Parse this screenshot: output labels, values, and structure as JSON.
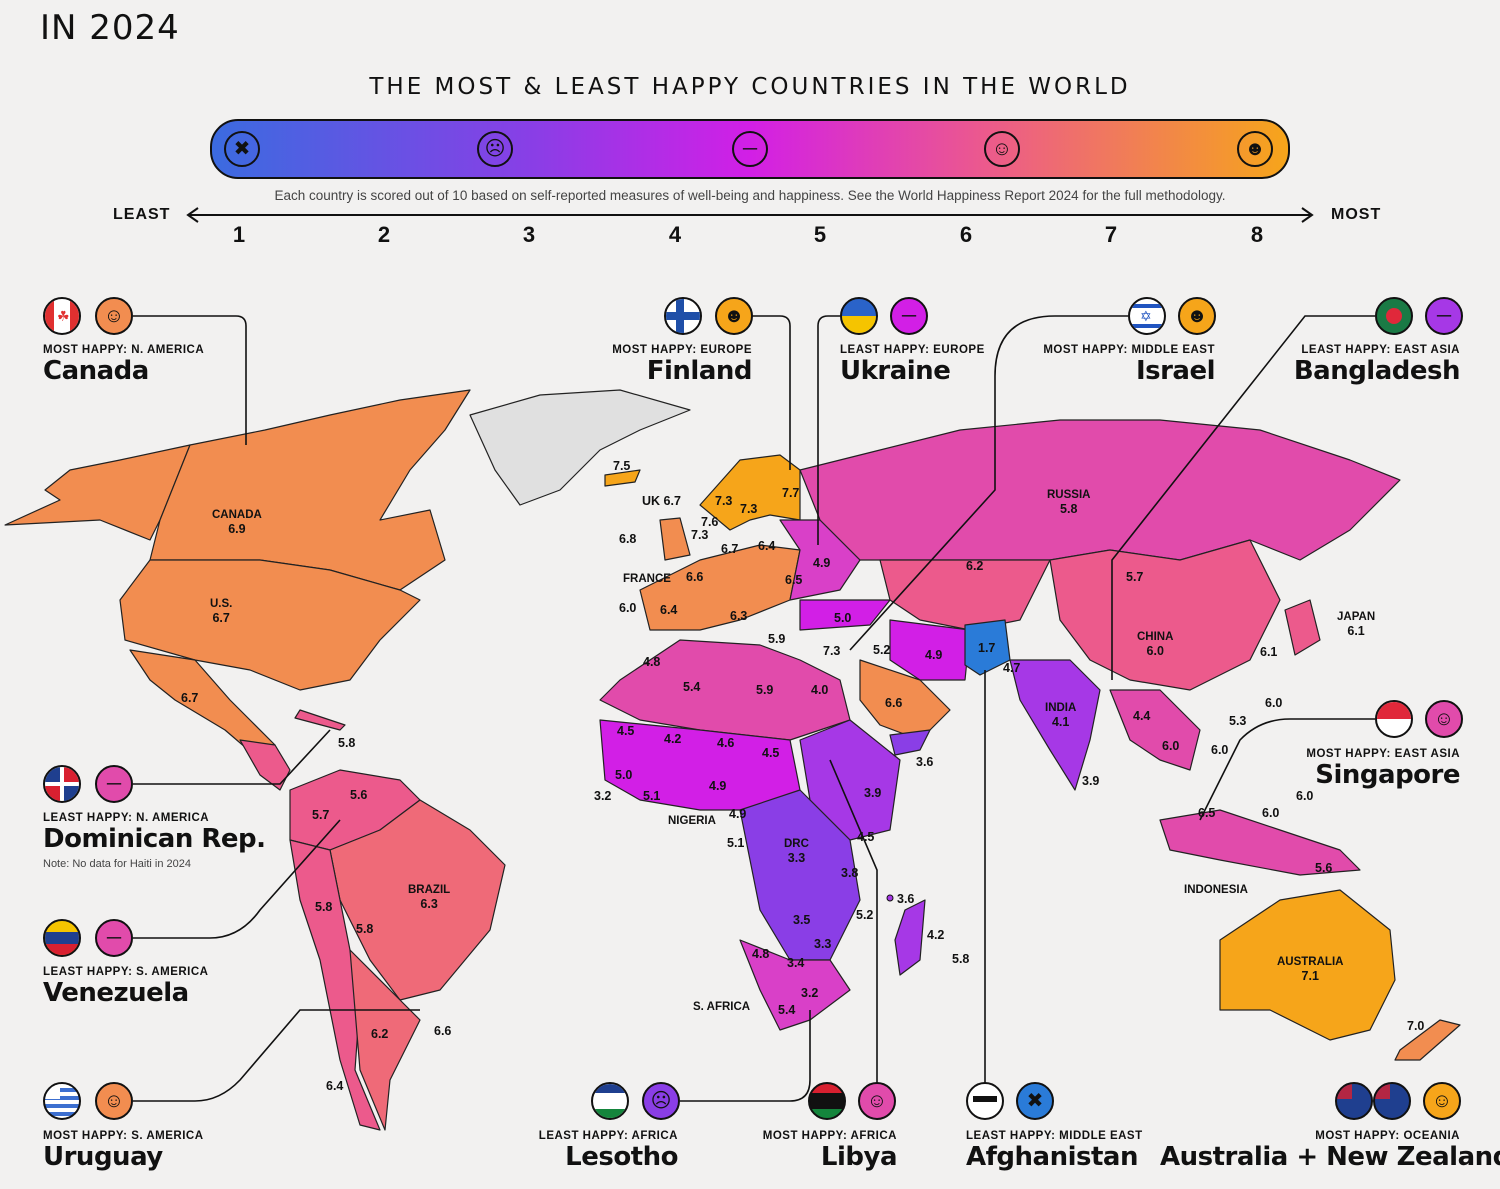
{
  "header": {
    "year_title": "IN 2024",
    "title": "THE MOST & LEAST HAPPY COUNTRIES IN THE WORLD",
    "note": "Each country is scored out of 10 based on self-reported measures of well-being and happiness. See the World Happiness Report 2024 for the full methodology.",
    "least_label": "LEAST",
    "most_label": "MOST",
    "scale_ticks": [
      "1",
      "2",
      "3",
      "4",
      "5",
      "6",
      "7",
      "8"
    ],
    "scale_faces": [
      "angry-face-icon",
      "frown-face-icon",
      "neutral-face-icon",
      "smile-face-icon",
      "grin-face-icon"
    ],
    "scale_colors": [
      "#3b6be0",
      "#8a3ee6",
      "#d21fe6",
      "#ec5a8c",
      "#f6a51a"
    ]
  },
  "map_labels": {
    "canada": {
      "name": "CANADA",
      "value": "6.9"
    },
    "us": {
      "name": "U.S.",
      "value": "6.7"
    },
    "russia": {
      "name": "RUSSIA",
      "value": "5.8"
    },
    "china": {
      "name": "CHINA",
      "value": "6.0"
    },
    "japan": {
      "name": "JAPAN",
      "value": "6.1"
    },
    "india": {
      "name": "INDIA",
      "value": "4.1"
    },
    "brazil": {
      "name": "BRAZIL",
      "value": "6.3"
    },
    "australia": {
      "name": "AUSTRALIA",
      "value": "7.1"
    },
    "drc": {
      "name": "DRC",
      "value": "3.3"
    },
    "uk": {
      "name": "UK",
      "value": "6.7"
    },
    "france": {
      "name": "FRANCE"
    },
    "nigeria": {
      "name": "NIGERIA"
    },
    "s_africa": {
      "name": "S. AFRICA"
    },
    "indonesia": {
      "name": "INDONESIA"
    }
  },
  "map_values": [
    "7.5",
    "7.3",
    "7.3",
    "7.7",
    "7.6",
    "7.3",
    "6.8",
    "6.7",
    "6.4",
    "4.9",
    "6.6",
    "6.5",
    "6.0",
    "6.4",
    "6.3",
    "5.9",
    "5.0",
    "7.3",
    "5.2",
    "4.9",
    "1.7",
    "4.7",
    "6.2",
    "5.7",
    "6.6",
    "4.0",
    "5.9",
    "5.4",
    "4.8",
    "4.5",
    "4.2",
    "4.6",
    "4.5",
    "5.0",
    "3.2",
    "5.1",
    "4.9",
    "4.9",
    "3.9",
    "3.6",
    "5.1",
    "4.5",
    "3.8",
    "3.6",
    "5.2",
    "3.5",
    "4.2",
    "3.3",
    "4.8",
    "3.4",
    "5.8",
    "3.2",
    "5.4",
    "6.7",
    "5.8",
    "5.6",
    "5.7",
    "5.8",
    "5.8",
    "6.2",
    "6.6",
    "6.4",
    "3.9",
    "4.4",
    "6.0",
    "6.0",
    "5.3",
    "6.0",
    "6.1",
    "6.5",
    "6.0",
    "6.0",
    "5.6",
    "7.0"
  ],
  "callouts": {
    "canada": {
      "kicker": "MOST HAPPY: N. AMERICA",
      "country": "Canada",
      "face": "smile-face-icon"
    },
    "finland": {
      "kicker": "MOST HAPPY: EUROPE",
      "country": "Finland",
      "face": "grin-face-icon"
    },
    "ukraine": {
      "kicker": "LEAST HAPPY: EUROPE",
      "country": "Ukraine",
      "face": "neutral-face-icon"
    },
    "israel": {
      "kicker": "MOST HAPPY: MIDDLE EAST",
      "country": "Israel",
      "face": "grin-face-icon"
    },
    "bangladesh": {
      "kicker": "LEAST HAPPY: EAST ASIA",
      "country": "Bangladesh",
      "face": "neutral-face-icon"
    },
    "singapore": {
      "kicker": "MOST HAPPY: EAST ASIA",
      "country": "Singapore",
      "face": "smile-face-icon"
    },
    "dominican": {
      "kicker": "LEAST HAPPY: N. AMERICA",
      "country": "Dominican Rep.",
      "note": "Note: No data for Haiti in 2024",
      "face": "neutral-face-icon"
    },
    "venezuela": {
      "kicker": "LEAST HAPPY: S. AMERICA",
      "country": "Venezuela",
      "face": "neutral-face-icon"
    },
    "uruguay": {
      "kicker": "MOST HAPPY: S. AMERICA",
      "country": "Uruguay",
      "face": "smile-face-icon"
    },
    "lesotho": {
      "kicker": "LEAST HAPPY: AFRICA",
      "country": "Lesotho",
      "face": "frown-face-icon"
    },
    "libya": {
      "kicker": "MOST HAPPY: AFRICA",
      "country": "Libya",
      "face": "smile-face-icon"
    },
    "afghanistan": {
      "kicker": "LEAST HAPPY: MIDDLE EAST",
      "country": "Afghanistan",
      "face": "angry-face-icon"
    },
    "oceania": {
      "kicker": "MOST HAPPY: OCEANIA",
      "country": "Australia + New Zealand",
      "face": "smile-face-icon"
    }
  }
}
